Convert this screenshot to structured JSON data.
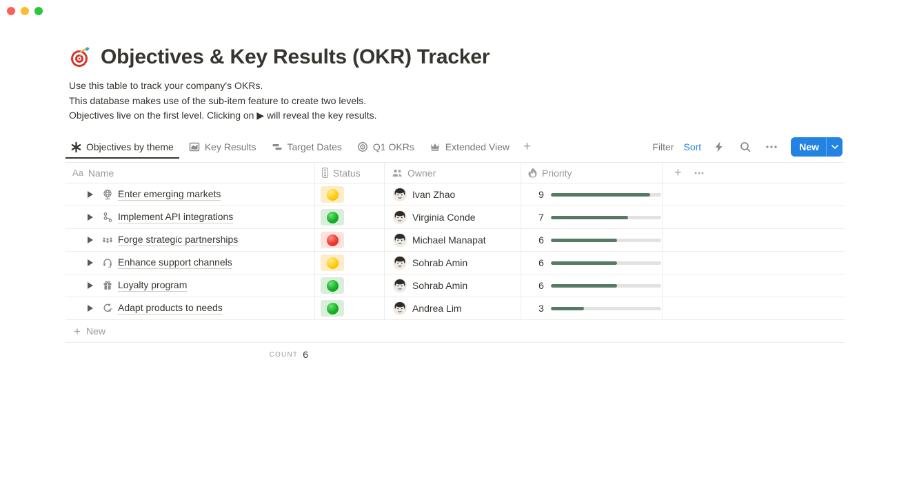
{
  "page": {
    "title": "Objectives & Key Results (OKR) Tracker",
    "description_lines": [
      "Use this table to track your company's OKRs.",
      "This database makes use of the sub-item feature to create two levels.",
      "Objectives live on the first level. Clicking on ▶ will reveal the key results."
    ]
  },
  "tabs": [
    {
      "label": "Objectives by theme",
      "icon": "asterisk-view-icon",
      "active": true
    },
    {
      "label": "Key Results",
      "icon": "chart-view-icon",
      "active": false
    },
    {
      "label": "Target Dates",
      "icon": "timeline-view-icon",
      "active": false
    },
    {
      "label": "Q1 OKRs",
      "icon": "target-view-icon",
      "active": false
    },
    {
      "label": "Extended View",
      "icon": "crown-view-icon",
      "active": false
    }
  ],
  "toolbar": {
    "filter_label": "Filter",
    "sort_label": "Sort",
    "new_label": "New"
  },
  "table": {
    "columns": [
      {
        "label": "Name",
        "icon": "text-aa-icon"
      },
      {
        "label": "Status",
        "icon": "traffic-light-icon"
      },
      {
        "label": "Owner",
        "icon": "people-icon"
      },
      {
        "label": "Priority",
        "icon": "flame-icon"
      }
    ],
    "priority_max": 10,
    "rows": [
      {
        "name": "Enter emerging markets",
        "icon": "globe",
        "status": "yellow",
        "owner": "Ivan Zhao",
        "priority": 9
      },
      {
        "name": "Implement API integrations",
        "icon": "branch",
        "status": "green",
        "owner": "Virginia Conde",
        "priority": 7
      },
      {
        "name": "Forge strategic partnerships",
        "icon": "people3",
        "status": "red",
        "owner": "Michael Manapat",
        "priority": 6
      },
      {
        "name": "Enhance support channels",
        "icon": "headset",
        "status": "yellow",
        "owner": "Sohrab Amin",
        "priority": 6
      },
      {
        "name": "Loyalty program",
        "icon": "gift",
        "status": "green",
        "owner": "Sohrab Amin",
        "priority": 6
      },
      {
        "name": "Adapt products to needs",
        "icon": "adapt",
        "status": "green",
        "owner": "Andrea Lim",
        "priority": 3
      }
    ],
    "new_row_label": "New",
    "footer": {
      "label": "COUNT",
      "value": "6"
    }
  },
  "colors": {
    "accent_blue": "#2383e2",
    "priority_bar_fill": "#557c63",
    "status_yellow_bg": "#fdecc8",
    "status_green_bg": "#dbeddb",
    "status_red_bg": "#ffe2dd"
  }
}
